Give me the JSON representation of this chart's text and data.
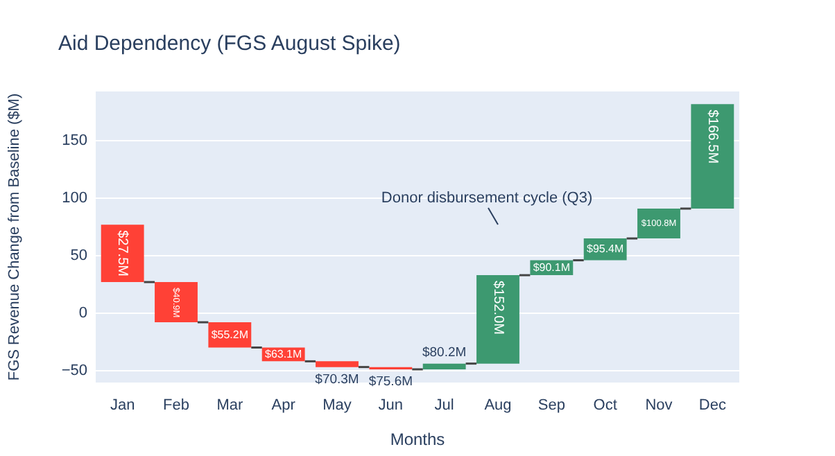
{
  "chart_data": {
    "type": "bar",
    "title": "Aid Dependency (FGS August Spike)",
    "xlabel": "Months",
    "ylabel": "FGS Revenue Change from Baseline ($M)",
    "categories": [
      "Jan",
      "Feb",
      "Mar",
      "Apr",
      "May",
      "Jun",
      "Jul",
      "Aug",
      "Sep",
      "Oct",
      "Nov",
      "Dec"
    ],
    "base": [
      77,
      27,
      -8,
      -30,
      -42,
      -47,
      -49,
      -44,
      33,
      46,
      65,
      91
    ],
    "values": [
      -50,
      -35,
      -22,
      -12,
      -5,
      -2,
      5,
      77,
      13,
      19,
      26,
      91
    ],
    "colors": [
      "#ff4136",
      "#ff4136",
      "#ff4136",
      "#ff4136",
      "#ff4136",
      "#ff4136",
      "#3d9970",
      "#3d9970",
      "#3d9970",
      "#3d9970",
      "#3d9970",
      "#3d9970"
    ],
    "ylim": [
      -60.5,
      193
    ],
    "yticks": [
      -50,
      0,
      50,
      100,
      150
    ],
    "grid": "y",
    "legend": false,
    "annotations": [
      "Donor disbursement cycle (Q3)",
      {
        "text": "$27.5M",
        "x": "Jan",
        "y": 27
      },
      {
        "text": "$40.9M",
        "x": "Feb",
        "y": -8
      },
      {
        "text": "$55.2M",
        "x": "Mar",
        "y": -30
      },
      {
        "text": "$63.1M",
        "x": "Apr",
        "y": -42
      },
      {
        "text": "$70.3M",
        "x": "May",
        "y": -47
      },
      {
        "text": "$75.6M",
        "x": "Jun",
        "y": -49
      },
      {
        "text": "$80.2M",
        "x": "Jul",
        "y": -44
      },
      {
        "text": "$152.0M",
        "x": "Aug",
        "y": 33
      },
      {
        "text": "$90.1M",
        "x": "Sep",
        "y": 46
      },
      {
        "text": "$95.4M",
        "x": "Oct",
        "y": 65
      },
      {
        "text": "$100.8M",
        "x": "Nov",
        "y": 91
      },
      {
        "text": "$166.5M",
        "x": "Dec",
        "y": 182
      }
    ]
  }
}
